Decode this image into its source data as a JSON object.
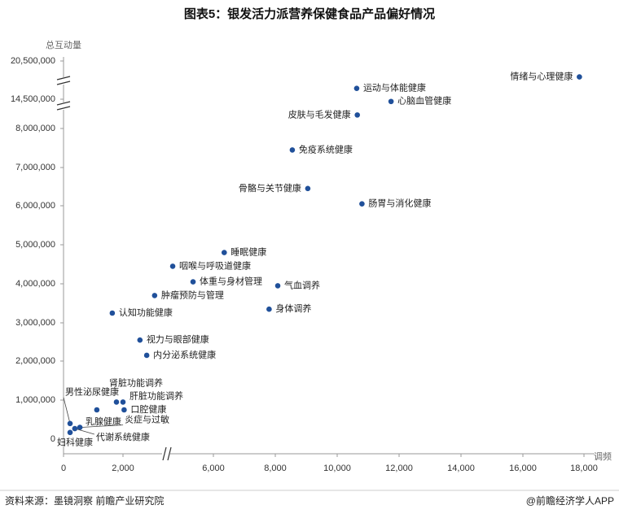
{
  "chart_data": {
    "type": "scatter",
    "title": "图表5：银发活力派营养保健食品产品偏好情况",
    "y_label": "总互动量",
    "x_label": "调频",
    "source": "资料来源：墨镜洞察  前瞻产业研究院",
    "brand": "@前瞻经济学人APP",
    "color": "#20509a",
    "xlim": [
      0,
      18000
    ],
    "ylim": [
      0,
      20500000
    ],
    "xticks": [
      0,
      {
        "value": 2000,
        "label": "2,000"
      },
      {
        "value": 6000,
        "label": "6,000"
      },
      {
        "value": 8000,
        "label": "8,000"
      },
      {
        "value": 10000,
        "label": "10,000"
      },
      {
        "value": 12000,
        "label": "12,000"
      },
      {
        "value": 14000,
        "label": "14,000"
      },
      {
        "value": 16000,
        "label": "16,000"
      },
      {
        "value": 18000,
        "label": "18,000"
      }
    ],
    "yticks": [
      0,
      {
        "value": 1000000,
        "label": "1,000,000"
      },
      {
        "value": 2000000,
        "label": "2,000,000"
      },
      {
        "value": 3000000,
        "label": "3,000,000"
      },
      {
        "value": 4000000,
        "label": "4,000,000"
      },
      {
        "value": 5000000,
        "label": "5,000,000"
      },
      {
        "value": 6000000,
        "label": "6,000,000"
      },
      {
        "value": 7000000,
        "label": "7,000,000"
      },
      {
        "value": 8000000,
        "label": "8,000,000"
      },
      {
        "value": 14500000,
        "label": "14,500,000"
      },
      {
        "value": 20500000,
        "label": "20,500,000"
      }
    ],
    "labels": [
      "情绪与心理健康",
      "运动与体能健康",
      "心脑血管健康",
      "皮肤与毛发健康",
      "免疫系统健康",
      "骨骼与关节健康",
      "肠胃与消化健康",
      "睡眠健康",
      "咽喉与呼吸道健康",
      "体重与身材管理",
      "气血调养",
      "肿瘤预防与管理",
      "身体调养",
      "认知功能健康",
      "视力与眼部健康",
      "内分泌系统健康",
      "肾脏功能调养",
      "肝脏功能调养",
      "口腔健康",
      "乳腺健康",
      "男性泌尿健康",
      "炎症与过敏",
      "代谢系统健康",
      "妇科健康"
    ],
    "x": [
      17850,
      10630,
      11740,
      10650,
      8550,
      9050,
      10800,
      6350,
      4200,
      5100,
      8080,
      3400,
      7800,
      1640,
      2750,
      3050,
      1780,
      2000,
      2050,
      1120,
      220,
      550,
      380,
      220
    ],
    "y": [
      18000000,
      16200000,
      14000000,
      11000000,
      7450000,
      6450000,
      6050000,
      4800000,
      4450000,
      4050000,
      3950000,
      3700000,
      3350000,
      3250000,
      2550000,
      2150000,
      950000,
      950000,
      750000,
      750000,
      400000,
      300000,
      270000,
      170000
    ]
  }
}
